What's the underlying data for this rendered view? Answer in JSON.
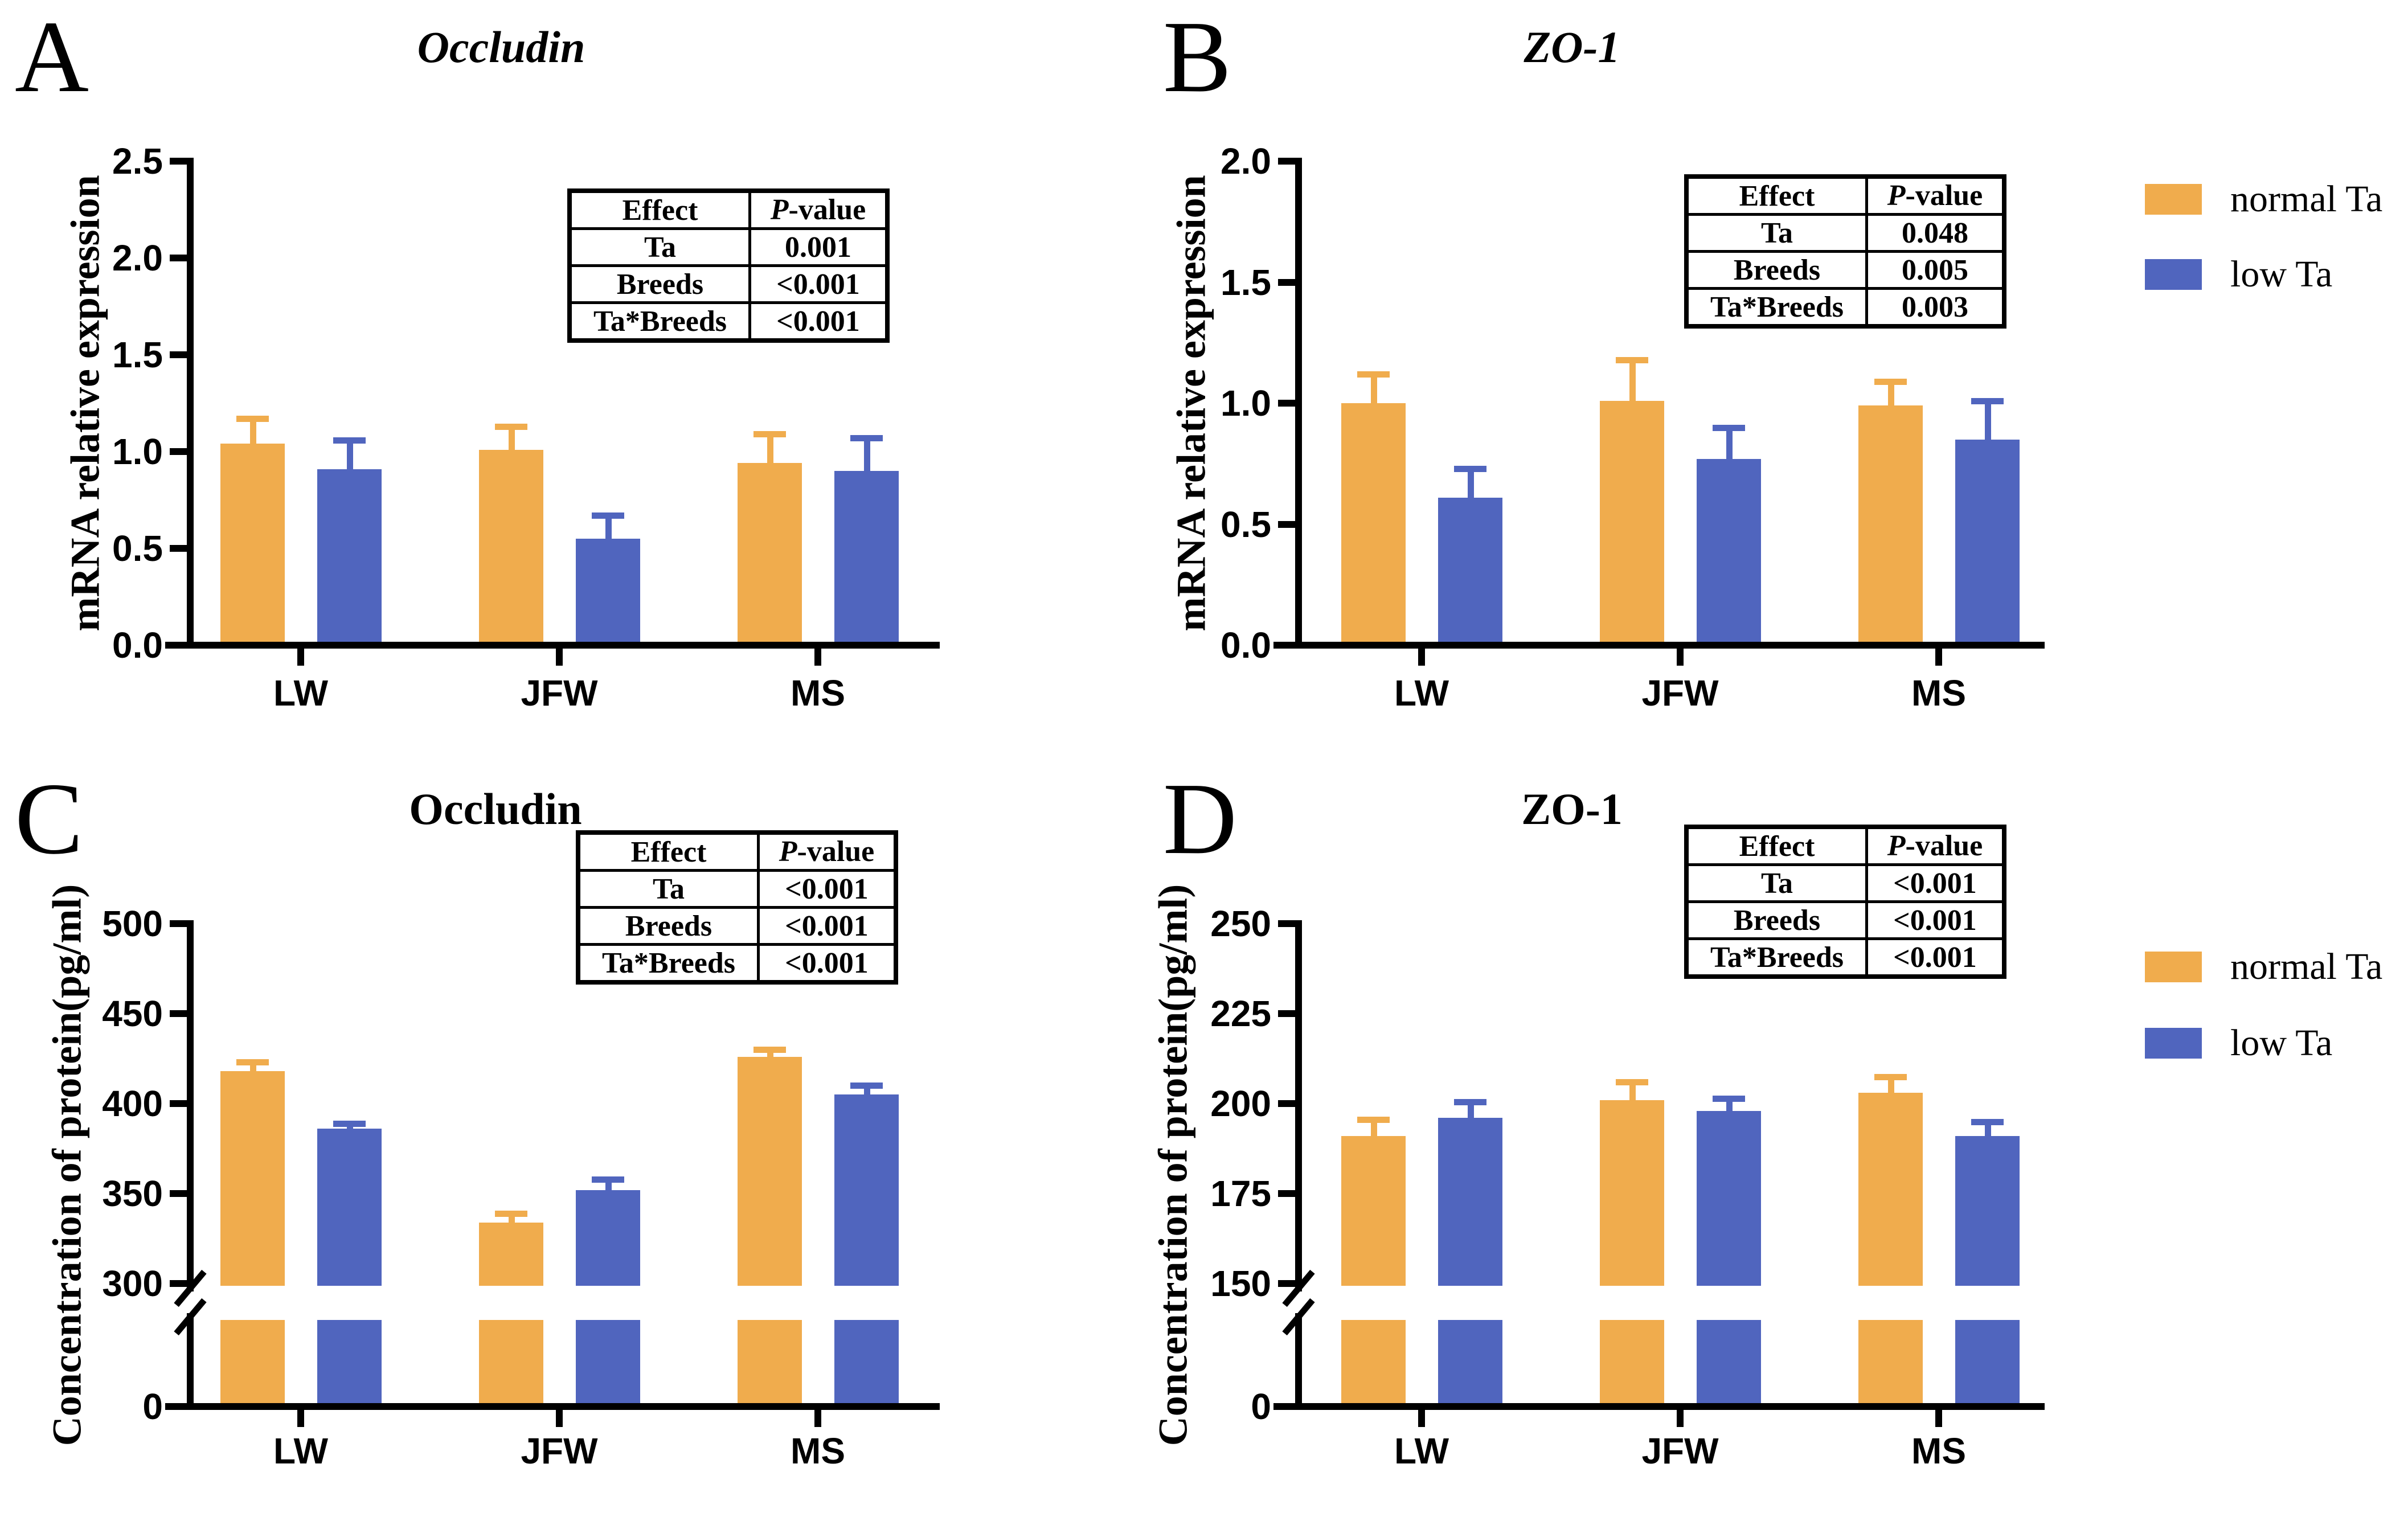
{
  "figure": {
    "background": "#ffffff"
  },
  "colors": {
    "normal_ta": "#F0AC4D",
    "low_ta": "#5065BE",
    "axis": "#000000"
  },
  "legend": {
    "items": [
      {
        "label": "normal Ta",
        "color": "#F0AC4D"
      },
      {
        "label": "low Ta",
        "color": "#5065BE"
      }
    ]
  },
  "categories": [
    "LW",
    "JFW",
    "MS"
  ],
  "chart_data": [
    {
      "panel_letter": "A",
      "type": "bar",
      "title": "Occludin",
      "title_italic": true,
      "ylabel": "mRNA relative expression",
      "xlabel": "",
      "categories": [
        "LW",
        "JFW",
        "MS"
      ],
      "ylim": [
        0,
        2.5
      ],
      "grid": false,
      "axis_ticks": [
        {
          "label": "0.0",
          "value": 0
        },
        {
          "label": "0.5",
          "value": 0.5
        },
        {
          "label": "1.0",
          "value": 1.0
        },
        {
          "label": "1.5",
          "value": 1.5
        },
        {
          "label": "2.0",
          "value": 2.0
        },
        {
          "label": "2.5",
          "value": 2.5
        }
      ],
      "series": [
        {
          "name": "normal Ta",
          "values": [
            1.04,
            1.01,
            0.94
          ],
          "errors": [
            0.13,
            0.12,
            0.15
          ]
        },
        {
          "name": "low Ta",
          "values": [
            0.91,
            0.55,
            0.9
          ],
          "errors": [
            0.15,
            0.12,
            0.17
          ]
        }
      ],
      "stats_table": {
        "header": [
          "Effect",
          "P-value"
        ],
        "rows": [
          [
            "Ta",
            "0.001"
          ],
          [
            "Breeds",
            "<0.001"
          ],
          [
            "Ta*Breeds",
            "<0.001"
          ]
        ]
      }
    },
    {
      "panel_letter": "B",
      "type": "bar",
      "title": "ZO-1",
      "title_italic": true,
      "ylabel": "mRNA relative expression",
      "xlabel": "",
      "categories": [
        "LW",
        "JFW",
        "MS"
      ],
      "ylim": [
        0,
        2.0
      ],
      "grid": false,
      "axis_ticks": [
        {
          "label": "0.0",
          "value": 0
        },
        {
          "label": "0.5",
          "value": 0.5
        },
        {
          "label": "1.0",
          "value": 1.0
        },
        {
          "label": "1.5",
          "value": 1.5
        },
        {
          "label": "2.0",
          "value": 2.0
        }
      ],
      "series": [
        {
          "name": "normal Ta",
          "values": [
            1.0,
            1.01,
            0.99
          ],
          "errors": [
            0.12,
            0.17,
            0.1
          ]
        },
        {
          "name": "low Ta",
          "values": [
            0.61,
            0.77,
            0.85
          ],
          "errors": [
            0.12,
            0.13,
            0.16
          ]
        }
      ],
      "stats_table": {
        "header": [
          "Effect",
          "P-value"
        ],
        "rows": [
          [
            "Ta",
            "0.048"
          ],
          [
            "Breeds",
            "0.005"
          ],
          [
            "Ta*Breeds",
            "0.003"
          ]
        ]
      }
    },
    {
      "panel_letter": "C",
      "type": "bar",
      "title": "Occludin",
      "title_italic": false,
      "ylabel": "Concentration of protein(pg/ml)",
      "xlabel": "",
      "categories": [
        "LW",
        "JFW",
        "MS"
      ],
      "ylim": [
        0,
        500
      ],
      "axis_break": [
        0,
        300
      ],
      "grid": false,
      "axis_ticks": [
        {
          "label": "0",
          "value": 0
        },
        {
          "label": "300",
          "value": 300
        },
        {
          "label": "350",
          "value": 350
        },
        {
          "label": "400",
          "value": 400
        },
        {
          "label": "450",
          "value": 450
        },
        {
          "label": "500",
          "value": 500
        }
      ],
      "series": [
        {
          "name": "normal Ta",
          "values": [
            418,
            334,
            426
          ],
          "errors": [
            5,
            5,
            4
          ]
        },
        {
          "name": "low Ta",
          "values": [
            386,
            352,
            405
          ],
          "errors": [
            3,
            6,
            5
          ]
        }
      ],
      "stats_table": {
        "header": [
          "Effect",
          "P-value"
        ],
        "rows": [
          [
            "Ta",
            "<0.001"
          ],
          [
            "Breeds",
            "<0.001"
          ],
          [
            "Ta*Breeds",
            "<0.001"
          ]
        ]
      }
    },
    {
      "panel_letter": "D",
      "type": "bar",
      "title": "ZO-1",
      "title_italic": false,
      "ylabel": "Concentration of protein(pg/ml)",
      "xlabel": "",
      "categories": [
        "LW",
        "JFW",
        "MS"
      ],
      "ylim": [
        0,
        250
      ],
      "axis_break": [
        0,
        150
      ],
      "grid": false,
      "axis_ticks": [
        {
          "label": "0",
          "value": 0
        },
        {
          "label": "150",
          "value": 150
        },
        {
          "label": "175",
          "value": 175
        },
        {
          "label": "200",
          "value": 200
        },
        {
          "label": "225",
          "value": 225
        },
        {
          "label": "250",
          "value": 250
        }
      ],
      "series": [
        {
          "name": "normal Ta",
          "values": [
            191,
            201,
            203
          ],
          "errors": [
            4.5,
            5,
            4.5
          ]
        },
        {
          "name": "low Ta",
          "values": [
            196,
            198,
            191
          ],
          "errors": [
            4.5,
            3.5,
            4
          ]
        }
      ],
      "stats_table": {
        "header": [
          "Effect",
          "P-value"
        ],
        "rows": [
          [
            "Ta",
            "<0.001"
          ],
          [
            "Breeds",
            "<0.001"
          ],
          [
            "Ta*Breeds",
            "<0.001"
          ]
        ]
      }
    }
  ]
}
